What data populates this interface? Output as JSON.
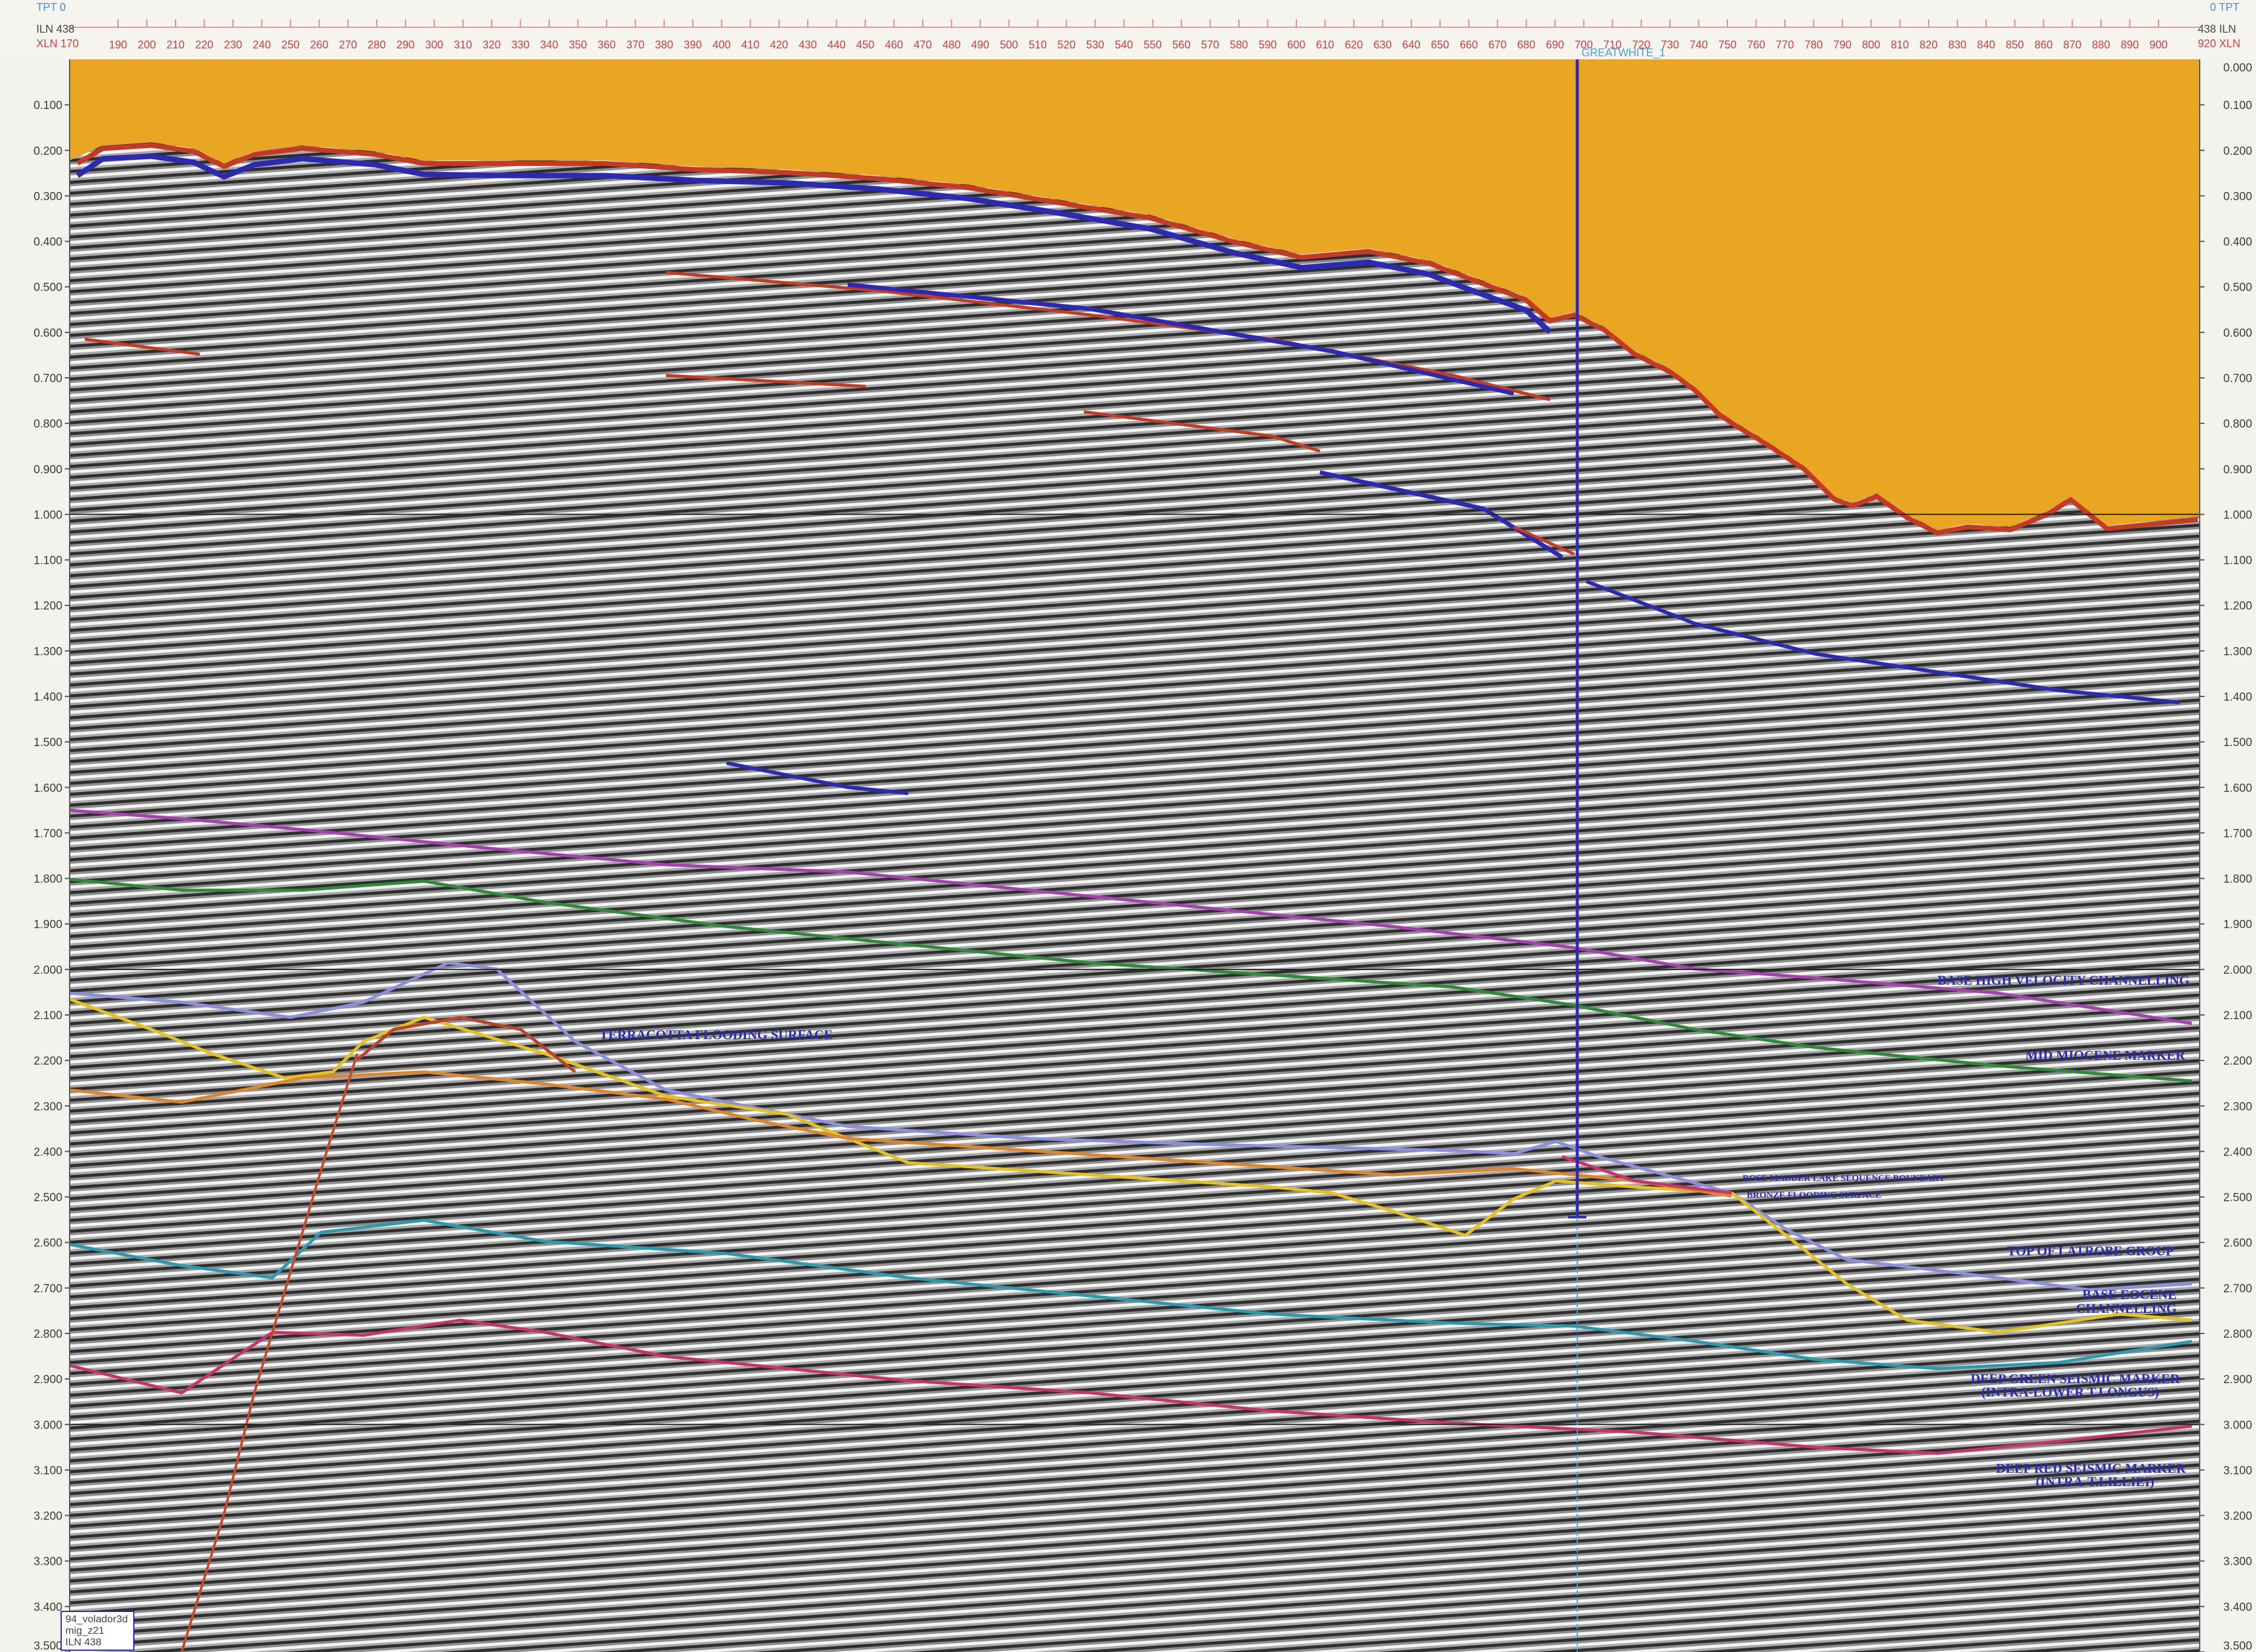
{
  "header": {
    "left": {
      "tpt": "TPT",
      "tpt_value": "0",
      "iln": "ILN",
      "iln_value": "438",
      "xln": "XLN",
      "xln_value": "170"
    },
    "right": {
      "tpt": "TPT",
      "tpt_value": "0",
      "iln": "ILN",
      "iln_value": "438",
      "xln": "XLN",
      "xln_value": "920"
    },
    "xline_ticks": [
      "190",
      "200",
      "210",
      "220",
      "230",
      "240",
      "250",
      "260",
      "270",
      "280",
      "290",
      "300",
      "310",
      "320",
      "330",
      "340",
      "350",
      "360",
      "370",
      "380",
      "390",
      "400",
      "410",
      "420",
      "430",
      "440",
      "450",
      "460",
      "470",
      "480",
      "490",
      "500",
      "510",
      "520",
      "530",
      "540",
      "550",
      "560",
      "570",
      "580",
      "590",
      "600",
      "610",
      "620",
      "630",
      "640",
      "650",
      "660",
      "670",
      "680",
      "690",
      "700",
      "710",
      "720",
      "730",
      "740",
      "750",
      "760",
      "770",
      "780",
      "790",
      "800",
      "810",
      "820",
      "830",
      "840",
      "850",
      "860",
      "870",
      "880",
      "890",
      "900"
    ],
    "well_name": "GREATWHITE_1"
  },
  "time_axis": {
    "ticks": [
      "0.100",
      "0.200",
      "0.300",
      "0.400",
      "0.500",
      "0.600",
      "0.700",
      "0.800",
      "0.900",
      "1.000",
      "1.100",
      "1.200",
      "1.300",
      "1.400",
      "1.500",
      "1.600",
      "1.700",
      "1.800",
      "1.900",
      "2.000",
      "2.100",
      "2.200",
      "2.300",
      "2.400",
      "2.500",
      "2.600",
      "2.700",
      "2.800",
      "2.900",
      "3.000",
      "3.100",
      "3.200",
      "3.300",
      "3.400",
      "3.500"
    ],
    "right_top": "0.000",
    "range": [
      0,
      3.5
    ]
  },
  "horizon_labels": {
    "base_high_velocity": "BASE HIGH VELOCITY CHANNELLING",
    "mid_miocene": "MID MIOCENE MARKER",
    "terracotta": "TERRACOTTA FLOODING SURFACE",
    "rose_madder": "ROSE MADDER LAKE SEQUENCE BOUNDARY",
    "bronze": "BRONZE FLOODING SURFACE",
    "top_latrobe": "TOP OF LATROBE GROUP",
    "base_eocene_1": "BASE EOCENE",
    "base_eocene_2": "CHANNELLING",
    "deep_green_1": "DEEP GREEN SEISMIC MARKER",
    "deep_green_2": "(INTRA-LOWER T.LONGUS)",
    "deep_red_1": "DEEP RED SEISMIC MARKER",
    "deep_red_2": "(INTRA-T.LILLIEI)"
  },
  "info_box": {
    "line1": "94_volador3d",
    "line2": "mig_z21",
    "line3": "ILN 438"
  },
  "colors": {
    "water": "#E9A623",
    "horizon_magenta": "#A640B0",
    "horizon_green": "#2E8A3A",
    "horizon_lavender": "#8A8FE0",
    "horizon_yellow": "#E6C21E",
    "horizon_orange": "#E0862A",
    "horizon_brown": "#B8442A",
    "horizon_cyan": "#2A9AB0",
    "horizon_crimson": "#C8336E",
    "fault": "#C24A2A",
    "well": "#2B2AB0",
    "label": "#2B2AB0"
  }
}
